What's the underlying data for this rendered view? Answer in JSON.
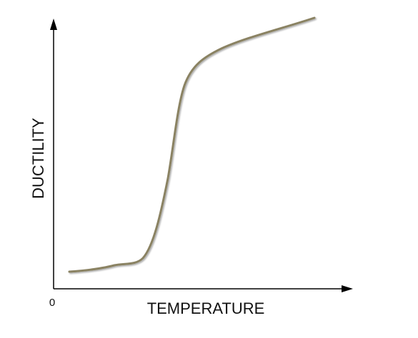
{
  "x_axis": {
    "label": "TEMPERATURE",
    "origin": "0"
  },
  "y_axis": {
    "label": "DUCTILITY"
  }
}
